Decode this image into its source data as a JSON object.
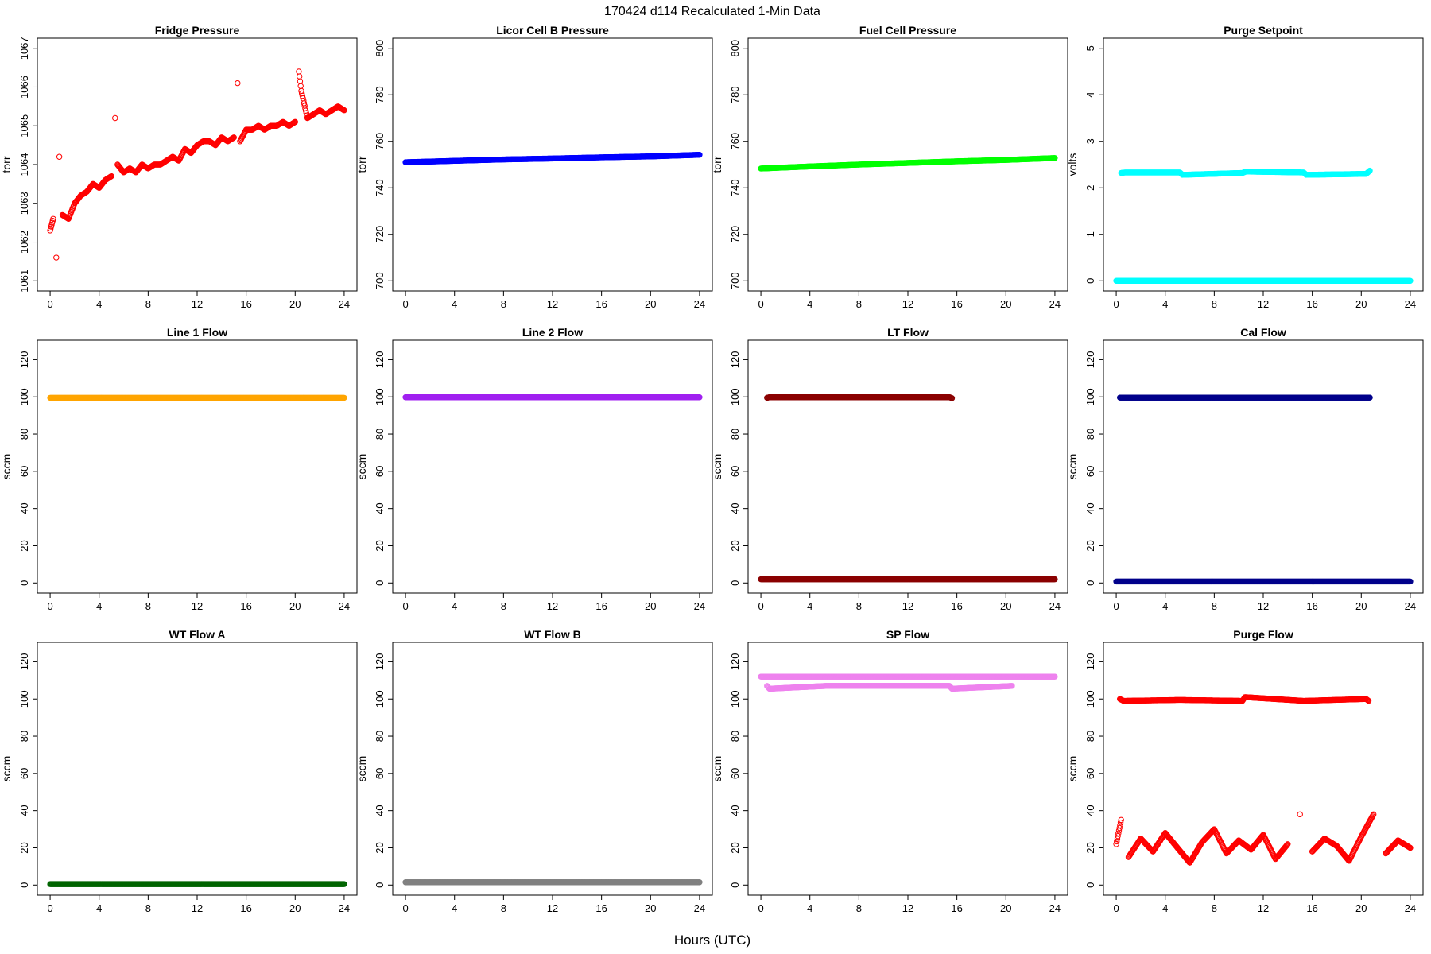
{
  "page": {
    "title": "170424   d114   Recalculated 1-Min Data",
    "xlabel": "Hours (UTC)"
  },
  "chart_data": [
    {
      "type": "scatter",
      "title": "Fridge Pressure",
      "ylabel": "torr",
      "xlim": [
        0,
        24
      ],
      "ylim": [
        1061,
        1067
      ],
      "xticks": [
        0,
        4,
        8,
        12,
        16,
        20,
        24
      ],
      "yticks": [
        1061,
        1062,
        1063,
        1064,
        1065,
        1066,
        1067
      ],
      "series": [
        {
          "color": "#ff0000",
          "marker": "open-circle",
          "points": [
            [
              0,
              1062.3
            ],
            [
              0.25,
              1062.6
            ],
            [
              0.5,
              1061.6
            ],
            [
              0.75,
              1064.2
            ],
            [
              1,
              1062.7
            ],
            [
              1.5,
              1062.6
            ],
            [
              2,
              1063
            ],
            [
              2.5,
              1063.2
            ],
            [
              3,
              1063.3
            ],
            [
              3.5,
              1063.5
            ],
            [
              4,
              1063.4
            ],
            [
              4.5,
              1063.6
            ],
            [
              5,
              1063.7
            ],
            [
              5.3,
              1065.2
            ],
            [
              5.5,
              1064
            ],
            [
              6,
              1063.8
            ],
            [
              6.5,
              1063.9
            ],
            [
              7,
              1063.8
            ],
            [
              7.5,
              1064
            ],
            [
              8,
              1063.9
            ],
            [
              8.5,
              1064
            ],
            [
              9,
              1064
            ],
            [
              9.5,
              1064.1
            ],
            [
              10,
              1064.2
            ],
            [
              10.5,
              1064.1
            ],
            [
              11,
              1064.4
            ],
            [
              11.5,
              1064.3
            ],
            [
              12,
              1064.5
            ],
            [
              12.5,
              1064.6
            ],
            [
              13,
              1064.6
            ],
            [
              13.5,
              1064.5
            ],
            [
              14,
              1064.7
            ],
            [
              14.5,
              1064.6
            ],
            [
              15,
              1064.7
            ],
            [
              15.3,
              1066.1
            ],
            [
              15.5,
              1064.6
            ],
            [
              16,
              1064.9
            ],
            [
              16.5,
              1064.9
            ],
            [
              17,
              1065
            ],
            [
              17.5,
              1064.9
            ],
            [
              18,
              1065
            ],
            [
              18.5,
              1065
            ],
            [
              19,
              1065.1
            ],
            [
              19.5,
              1065
            ],
            [
              20,
              1065.1
            ],
            [
              20.3,
              1066.4
            ],
            [
              20.5,
              1065.9
            ],
            [
              21,
              1065.2
            ],
            [
              21.5,
              1065.3
            ],
            [
              22,
              1065.4
            ],
            [
              22.5,
              1065.3
            ],
            [
              23,
              1065.4
            ],
            [
              23.5,
              1065.5
            ],
            [
              24,
              1065.4
            ]
          ]
        }
      ]
    },
    {
      "type": "scatter",
      "title": "Licor Cell B Pressure",
      "ylabel": "torr",
      "xlim": [
        0,
        24
      ],
      "ylim": [
        700,
        800
      ],
      "xticks": [
        0,
        4,
        8,
        12,
        16,
        20,
        24
      ],
      "yticks": [
        700,
        720,
        740,
        760,
        780,
        800
      ],
      "series": [
        {
          "color": "#0000ff",
          "marker": "open-circle",
          "points": [
            [
              0,
              751
            ],
            [
              4,
              751.6
            ],
            [
              8,
              752.2
            ],
            [
              12,
              752.6
            ],
            [
              16,
              753.1
            ],
            [
              20,
              753.5
            ],
            [
              24,
              754.2
            ]
          ]
        }
      ]
    },
    {
      "type": "scatter",
      "title": "Fuel Cell Pressure",
      "ylabel": "torr",
      "xlim": [
        0,
        24
      ],
      "ylim": [
        700,
        800
      ],
      "xticks": [
        0,
        4,
        8,
        12,
        16,
        20,
        24
      ],
      "yticks": [
        700,
        720,
        740,
        760,
        780,
        800
      ],
      "series": [
        {
          "color": "#00ff00",
          "marker": "open-circle",
          "points": [
            [
              0,
              748.3
            ],
            [
              4,
              749.2
            ],
            [
              8,
              750
            ],
            [
              12,
              750.7
            ],
            [
              16,
              751.4
            ],
            [
              20,
              752
            ],
            [
              24,
              752.8
            ]
          ]
        }
      ]
    },
    {
      "type": "scatter",
      "title": "Purge Setpoint",
      "ylabel": "volts",
      "xlim": [
        0,
        24
      ],
      "ylim": [
        0,
        5
      ],
      "xticks": [
        0,
        4,
        8,
        12,
        16,
        20,
        24
      ],
      "yticks": [
        0,
        1,
        2,
        3,
        4,
        5
      ],
      "series": [
        {
          "color": "#00ffff",
          "marker": "open-circle",
          "points": [
            [
              0,
              0
            ],
            [
              24,
              0
            ],
            [
              0.4,
              2.32
            ],
            [
              0.7,
              2.33
            ],
            [
              5.2,
              2.33
            ],
            [
              5.4,
              2.28
            ],
            [
              10.3,
              2.32
            ],
            [
              10.6,
              2.35
            ],
            [
              15.3,
              2.33
            ],
            [
              15.5,
              2.28
            ],
            [
              20.4,
              2.3
            ],
            [
              20.7,
              2.37
            ]
          ]
        }
      ]
    },
    {
      "type": "scatter",
      "title": "Line 1 Flow",
      "ylabel": "sccm",
      "xlim": [
        0,
        24
      ],
      "ylim": [
        0,
        125
      ],
      "xticks": [
        0,
        4,
        8,
        12,
        16,
        20,
        24
      ],
      "yticks": [
        0,
        20,
        40,
        60,
        80,
        100,
        120
      ],
      "series": [
        {
          "color": "#ffa500",
          "marker": "open-circle",
          "points": [
            [
              0,
              99.5
            ],
            [
              24,
              99.5
            ]
          ]
        }
      ]
    },
    {
      "type": "scatter",
      "title": "Line 2 Flow",
      "ylabel": "sccm",
      "xlim": [
        0,
        24
      ],
      "ylim": [
        0,
        125
      ],
      "xticks": [
        0,
        4,
        8,
        12,
        16,
        20,
        24
      ],
      "yticks": [
        0,
        20,
        40,
        60,
        80,
        100,
        120
      ],
      "series": [
        {
          "color": "#a020f0",
          "marker": "open-circle",
          "points": [
            [
              0,
              99.8
            ],
            [
              24,
              99.8
            ]
          ]
        }
      ]
    },
    {
      "type": "scatter",
      "title": "LT Flow",
      "ylabel": "sccm",
      "xlim": [
        0,
        24
      ],
      "ylim": [
        0,
        125
      ],
      "xticks": [
        0,
        4,
        8,
        12,
        16,
        20,
        24
      ],
      "yticks": [
        0,
        20,
        40,
        60,
        80,
        100,
        120
      ],
      "series": [
        {
          "color": "#8b0000",
          "marker": "open-circle",
          "points": [
            [
              0,
              2
            ],
            [
              24,
              2
            ],
            [
              0.5,
              99.5
            ],
            [
              0.7,
              99.8
            ],
            [
              15.4,
              99.8
            ],
            [
              15.6,
              99.3
            ]
          ]
        }
      ]
    },
    {
      "type": "scatter",
      "title": "Cal Flow",
      "ylabel": "sccm",
      "xlim": [
        0,
        24
      ],
      "ylim": [
        0,
        125
      ],
      "xticks": [
        0,
        4,
        8,
        12,
        16,
        20,
        24
      ],
      "yticks": [
        0,
        20,
        40,
        60,
        80,
        100,
        120
      ],
      "series": [
        {
          "color": "#00008b",
          "marker": "open-circle",
          "points": [
            [
              0,
              0.8
            ],
            [
              24,
              0.8
            ],
            [
              0.3,
              99.6
            ],
            [
              0.8,
              99.6
            ],
            [
              5.2,
              99.6
            ],
            [
              5.5,
              99.6
            ],
            [
              10.3,
              99.6
            ],
            [
              10.7,
              99.6
            ],
            [
              15.2,
              99.6
            ],
            [
              15.5,
              99.6
            ],
            [
              20.3,
              99.6
            ],
            [
              20.7,
              99.6
            ]
          ]
        }
      ]
    },
    {
      "type": "scatter",
      "title": "WT Flow A",
      "ylabel": "sccm",
      "xlim": [
        0,
        24
      ],
      "ylim": [
        0,
        125
      ],
      "xticks": [
        0,
        4,
        8,
        12,
        16,
        20,
        24
      ],
      "yticks": [
        0,
        20,
        40,
        60,
        80,
        100,
        120
      ],
      "series": [
        {
          "color": "#006400",
          "marker": "open-circle",
          "points": [
            [
              0,
              0.5
            ],
            [
              24,
              0.5
            ]
          ]
        }
      ]
    },
    {
      "type": "scatter",
      "title": "WT Flow B",
      "ylabel": "sccm",
      "xlim": [
        0,
        24
      ],
      "ylim": [
        0,
        125
      ],
      "xticks": [
        0,
        4,
        8,
        12,
        16,
        20,
        24
      ],
      "yticks": [
        0,
        20,
        40,
        60,
        80,
        100,
        120
      ],
      "series": [
        {
          "color": "#808080",
          "marker": "open-circle",
          "points": [
            [
              0,
              1.5
            ],
            [
              24,
              1.5
            ]
          ]
        }
      ]
    },
    {
      "type": "scatter",
      "title": "SP Flow",
      "ylabel": "sccm",
      "xlim": [
        0,
        24
      ],
      "ylim": [
        0,
        125
      ],
      "xticks": [
        0,
        4,
        8,
        12,
        16,
        20,
        24
      ],
      "yticks": [
        0,
        20,
        40,
        60,
        80,
        100,
        120
      ],
      "series": [
        {
          "color": "#ee82ee",
          "marker": "open-circle",
          "points": [
            [
              0,
              112
            ],
            [
              24,
              112
            ],
            [
              0.5,
              107
            ],
            [
              0.7,
              105.5
            ],
            [
              5.3,
              107
            ],
            [
              10.5,
              107
            ],
            [
              15.4,
              107
            ],
            [
              15.6,
              105.5
            ],
            [
              20.5,
              107
            ]
          ]
        }
      ]
    },
    {
      "type": "scatter",
      "title": "Purge Flow",
      "ylabel": "sccm",
      "xlim": [
        0,
        24
      ],
      "ylim": [
        0,
        125
      ],
      "xticks": [
        0,
        4,
        8,
        12,
        16,
        20,
        24
      ],
      "yticks": [
        0,
        20,
        40,
        60,
        80,
        100,
        120
      ],
      "series": [
        {
          "color": "#ff0000",
          "marker": "open-circle",
          "points": [
            [
              0.3,
              100
            ],
            [
              0.6,
              99
            ],
            [
              5.2,
              99.5
            ],
            [
              10.3,
              99
            ],
            [
              10.5,
              101
            ],
            [
              15.3,
              99
            ],
            [
              20.4,
              100
            ],
            [
              20.6,
              99
            ],
            [
              0,
              22
            ],
            [
              0.4,
              35
            ],
            [
              1,
              15
            ],
            [
              2,
              25
            ],
            [
              3,
              18
            ],
            [
              4,
              28
            ],
            [
              5,
              20
            ],
            [
              6,
              12
            ],
            [
              7,
              23
            ],
            [
              8,
              30
            ],
            [
              9,
              17
            ],
            [
              10,
              24
            ],
            [
              11,
              19
            ],
            [
              12,
              27
            ],
            [
              13,
              14
            ],
            [
              14,
              22
            ],
            [
              15,
              38
            ],
            [
              16,
              18
            ],
            [
              17,
              25
            ],
            [
              18,
              21
            ],
            [
              19,
              13
            ],
            [
              20,
              26
            ],
            [
              21,
              38
            ],
            [
              22,
              17
            ],
            [
              23,
              24
            ],
            [
              24,
              20
            ]
          ]
        }
      ]
    }
  ]
}
